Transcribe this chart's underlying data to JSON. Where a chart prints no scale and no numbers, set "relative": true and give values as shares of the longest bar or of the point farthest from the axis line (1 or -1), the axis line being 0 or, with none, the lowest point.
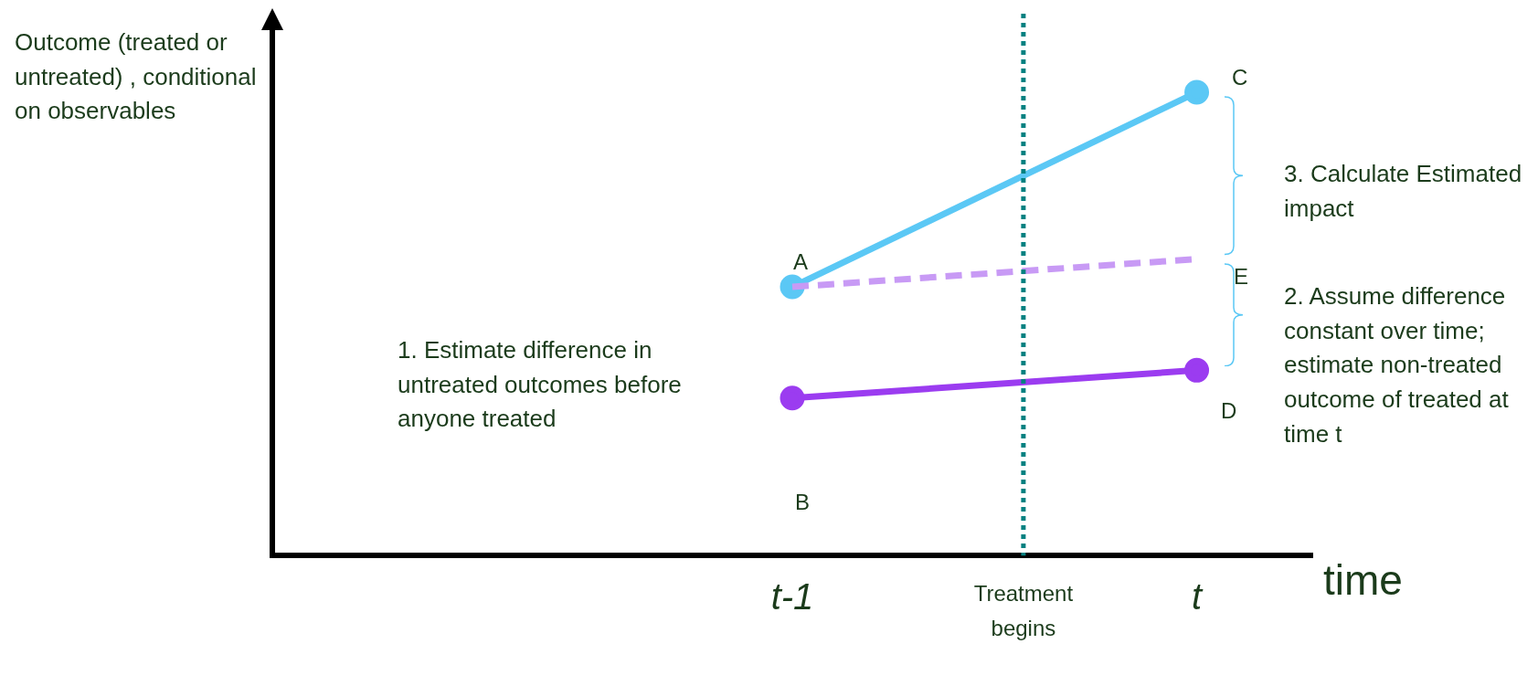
{
  "chart_data": {
    "type": "line",
    "ylabel": "Outcome (treated or untreated) ,  conditional on observables",
    "xlabel": "time",
    "relative": true,
    "tick_labels": "x",
    "grid": false,
    "legend": false,
    "categories": [
      null,
      null,
      null,
      null,
      null,
      null,
      null,
      null,
      null,
      "t-1",
      null,
      null,
      null,
      "Treatment begins",
      null,
      null,
      "t",
      null,
      null
    ],
    "series": [
      {
        "color": "#5bc8f5",
        "x": [
          "t-1",
          "t"
        ],
        "values": [
          0.58,
          1
        ],
        "marker": "circle",
        "line_style": "solid"
      },
      {
        "color": "#9b3cf0",
        "x": [
          "t-1",
          "t"
        ],
        "values": [
          0.34,
          0.4
        ],
        "marker": "circle",
        "line_style": "solid"
      },
      {
        "color": "#c89af5",
        "x": [
          "t-1",
          "t"
        ],
        "values": [
          0.58,
          0.64
        ],
        "marker": "none",
        "line_style": "dashed"
      }
    ],
    "ref_lines": [
      {
        "axis": "x",
        "value": "Treatment begins",
        "color": "#008080",
        "line_style": "dotted"
      }
    ],
    "annotations": [
      "A",
      "B",
      "C",
      "D",
      "E",
      "1. Estimate difference in untreated outcomes before anyone treated",
      "2. Assume difference constant over time; estimate non-treated outcome of treated at time t",
      "3. Calculate Estimated impact"
    ]
  }
}
